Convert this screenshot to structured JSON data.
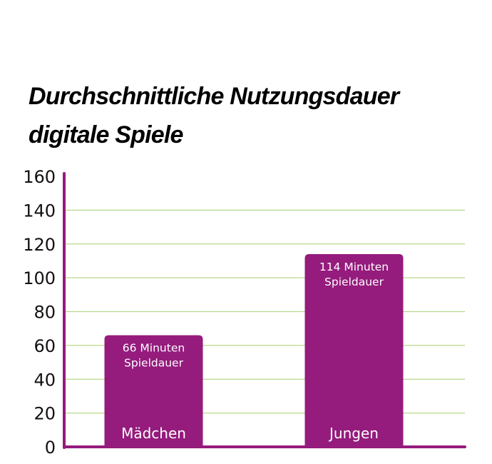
{
  "chart_data": {
    "type": "bar",
    "title": "Durchschnittliche Nutzungsdauer digitale Spiele",
    "title_lines": [
      "Durchschnittliche Nutzungsdauer",
      "digitale Spiele"
    ],
    "categories": [
      "Mädchen",
      "Jungen"
    ],
    "values": [
      66,
      114
    ],
    "data_labels": [
      [
        "66 Minuten",
        "Spieldauer"
      ],
      [
        "114 Minuten",
        "Spieldauer"
      ]
    ],
    "ylim": [
      0,
      160
    ],
    "yticks": [
      "0",
      "20",
      "40",
      "60",
      "80",
      "100",
      "120",
      "140",
      "160"
    ],
    "grid": true,
    "colors": {
      "bar": "#951b7d",
      "axis": "#951b7d",
      "grid": "#b5d98a"
    }
  }
}
